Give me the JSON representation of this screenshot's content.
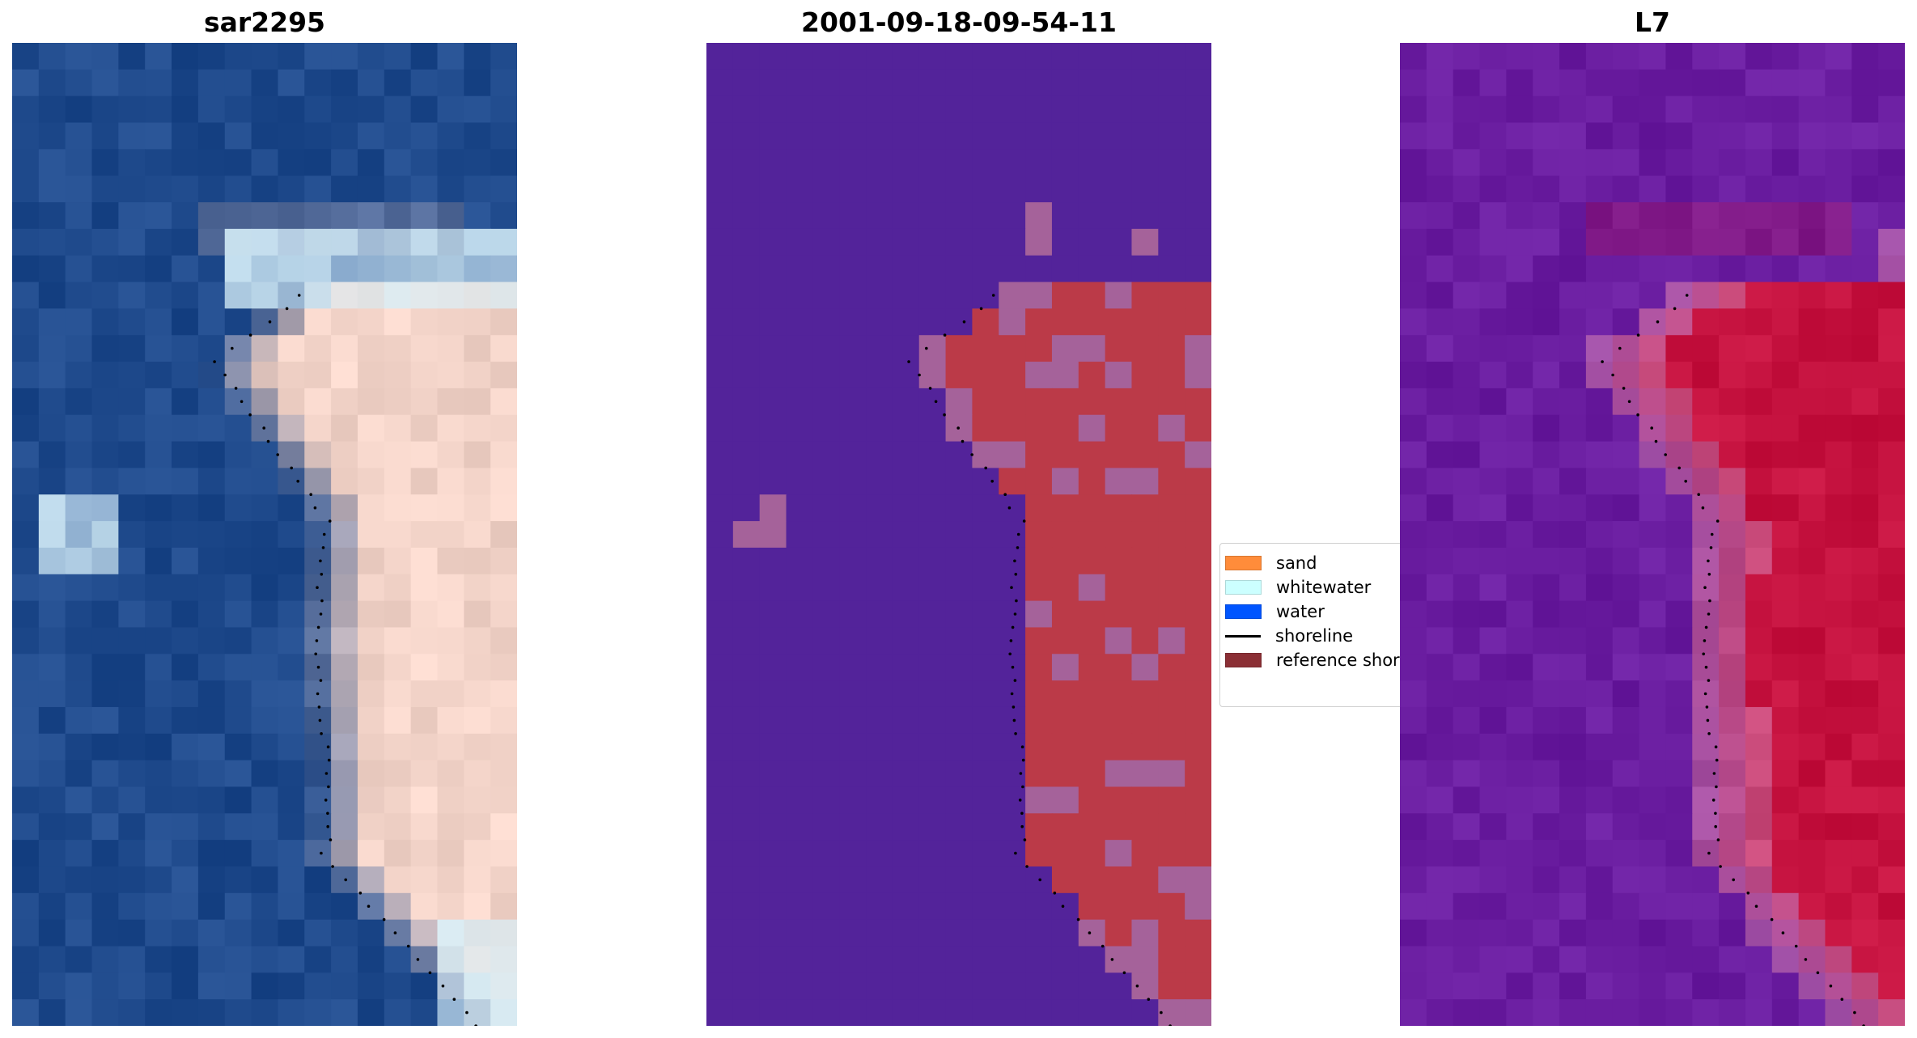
{
  "panels": [
    {
      "title": "sar2295"
    },
    {
      "title": "2001-09-18-09-54-11"
    },
    {
      "title": "L7"
    }
  ],
  "legend": {
    "items": [
      {
        "label": "sand",
        "color": "#ff8c3a",
        "kind": "patch"
      },
      {
        "label": "whitewater",
        "color": "#ccffff",
        "kind": "patch"
      },
      {
        "label": "water",
        "color": "#0055ff",
        "kind": "patch"
      },
      {
        "label": "shoreline",
        "color": "#000000",
        "kind": "line"
      },
      {
        "label": "reference shoreline",
        "color": "#8b2f35",
        "kind": "patch"
      }
    ]
  },
  "colors": {
    "rgb_water": "#1f4a8c",
    "rgb_sand": "#f2d3c8",
    "class_water": "#53239a",
    "class_sand": "#bb3a48",
    "class_mixed": "#a5629a",
    "mndwi_water": "#6a1da0",
    "mndwi_sand": "#c5123f"
  }
}
